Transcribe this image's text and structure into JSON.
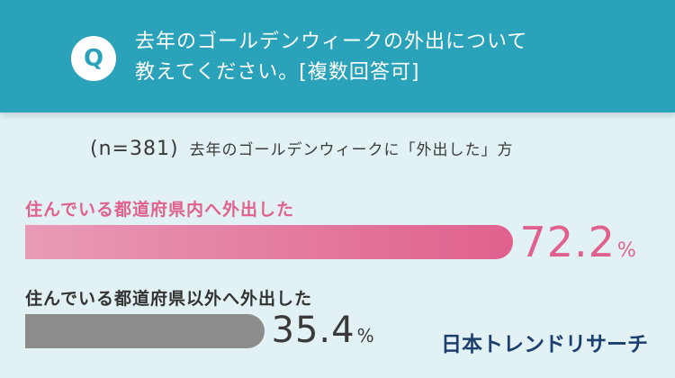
{
  "header": {
    "badge": "Q",
    "question_line1": "去年のゴールデンウィークの外出について",
    "question_line2": "教えてください。[複数回答可]"
  },
  "subtitle": {
    "n": "(n=381)",
    "description": "去年のゴールデンウィークに「外出した」方"
  },
  "logo": "日本トレンドリサーチ",
  "colors": {
    "header_bg": "#2aa2ba",
    "page_bg": "#e1f1f4",
    "series1": "#e0608e",
    "series2": "#8c8c8c",
    "logo": "#1c3f6e"
  },
  "chart_data": {
    "type": "bar",
    "orientation": "horizontal",
    "unit": "%",
    "categories": [
      "住んでいる都道府県内へ外出した",
      "住んでいる都道府県以外へ外出した"
    ],
    "values": [
      72.2,
      35.4
    ],
    "value_labels": [
      "72.2",
      "35.4"
    ]
  }
}
